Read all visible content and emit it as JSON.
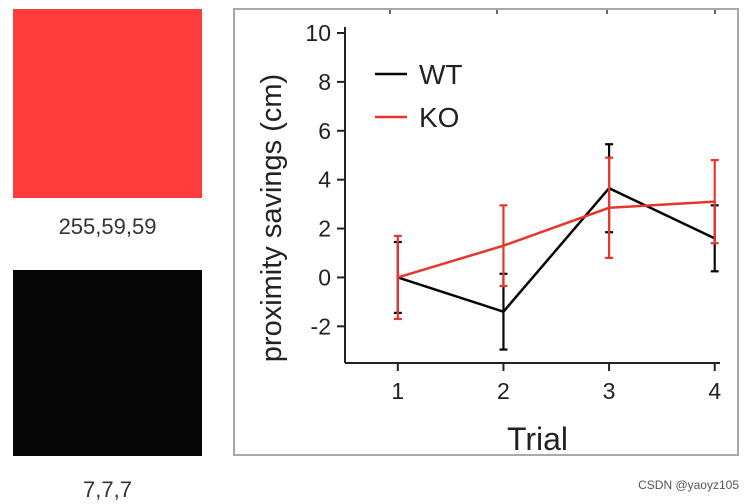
{
  "swatches": [
    {
      "label": "255,59,59",
      "color": "#ff3b3b"
    },
    {
      "label": "7,7,7",
      "color": "#070707"
    }
  ],
  "watermark": "CSDN @yaoyz105",
  "chart_data": {
    "type": "line",
    "title": "",
    "xlabel": "Trial",
    "ylabel": "proximity savings (cm)",
    "x": [
      1,
      2,
      3,
      4
    ],
    "xlim": [
      0.5,
      4.05
    ],
    "ylim": [
      -3.5,
      10
    ],
    "yticks": [
      -2,
      0,
      2,
      4,
      6,
      8,
      10
    ],
    "xticks": [
      1,
      2,
      3,
      4
    ],
    "legend_position": "top-left",
    "series": [
      {
        "name": "WT",
        "color": "#070707",
        "values": [
          0.0,
          -1.4,
          3.65,
          1.6
        ],
        "error": [
          1.45,
          1.55,
          1.8,
          1.35
        ]
      },
      {
        "name": "KO",
        "color": "#e8352e",
        "values": [
          0.0,
          1.3,
          2.85,
          3.1
        ],
        "error": [
          1.7,
          1.65,
          2.05,
          1.7
        ]
      }
    ]
  }
}
